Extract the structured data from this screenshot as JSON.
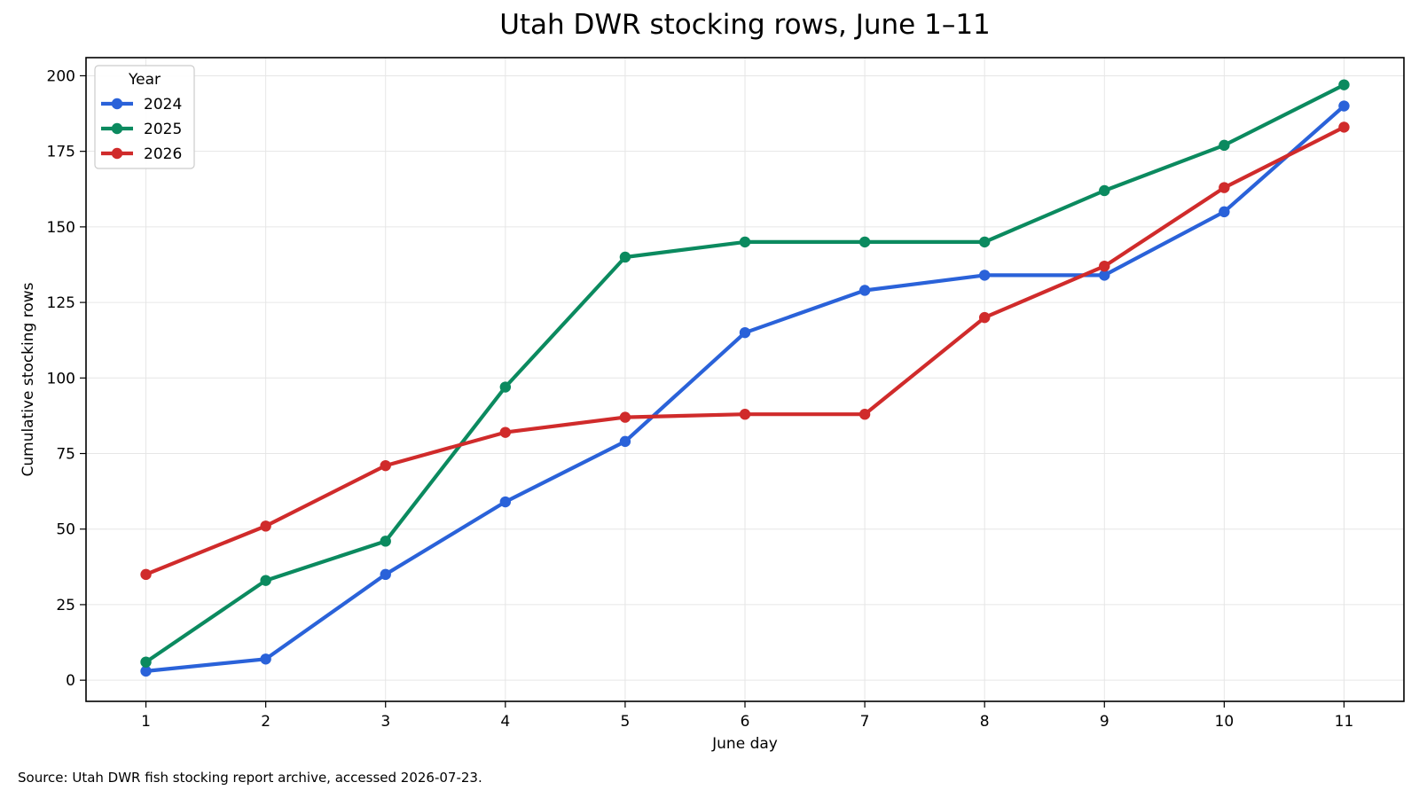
{
  "chart_data": {
    "type": "line",
    "title": "Utah DWR stocking rows, June 1–11",
    "xlabel": "June day",
    "ylabel": "Cumulative stocking rows",
    "x": [
      1,
      2,
      3,
      4,
      5,
      6,
      7,
      8,
      9,
      10,
      11
    ],
    "x_ticks": [
      "1",
      "2",
      "3",
      "4",
      "5",
      "6",
      "7",
      "8",
      "9",
      "10",
      "11"
    ],
    "y_ticks": [
      "0",
      "25",
      "50",
      "75",
      "100",
      "125",
      "150",
      "175",
      "200"
    ],
    "xlim": [
      0.5,
      11.5
    ],
    "ylim": [
      -7,
      206
    ],
    "grid": true,
    "legend": {
      "title": "Year",
      "placement": "top-left"
    },
    "series": [
      {
        "name": "2024",
        "color": "#2a62d9",
        "values": [
          3,
          7,
          35,
          59,
          79,
          115,
          129,
          134,
          134,
          155,
          190
        ]
      },
      {
        "name": "2025",
        "color": "#0b8a5f",
        "values": [
          6,
          33,
          46,
          97,
          140,
          145,
          145,
          145,
          162,
          177,
          197
        ]
      },
      {
        "name": "2026",
        "color": "#d02b2b",
        "values": [
          35,
          51,
          71,
          82,
          87,
          88,
          88,
          120,
          137,
          163,
          183
        ]
      }
    ]
  },
  "footer": {
    "source": "Source: Utah DWR fish stocking report archive, accessed 2026-07-23."
  }
}
